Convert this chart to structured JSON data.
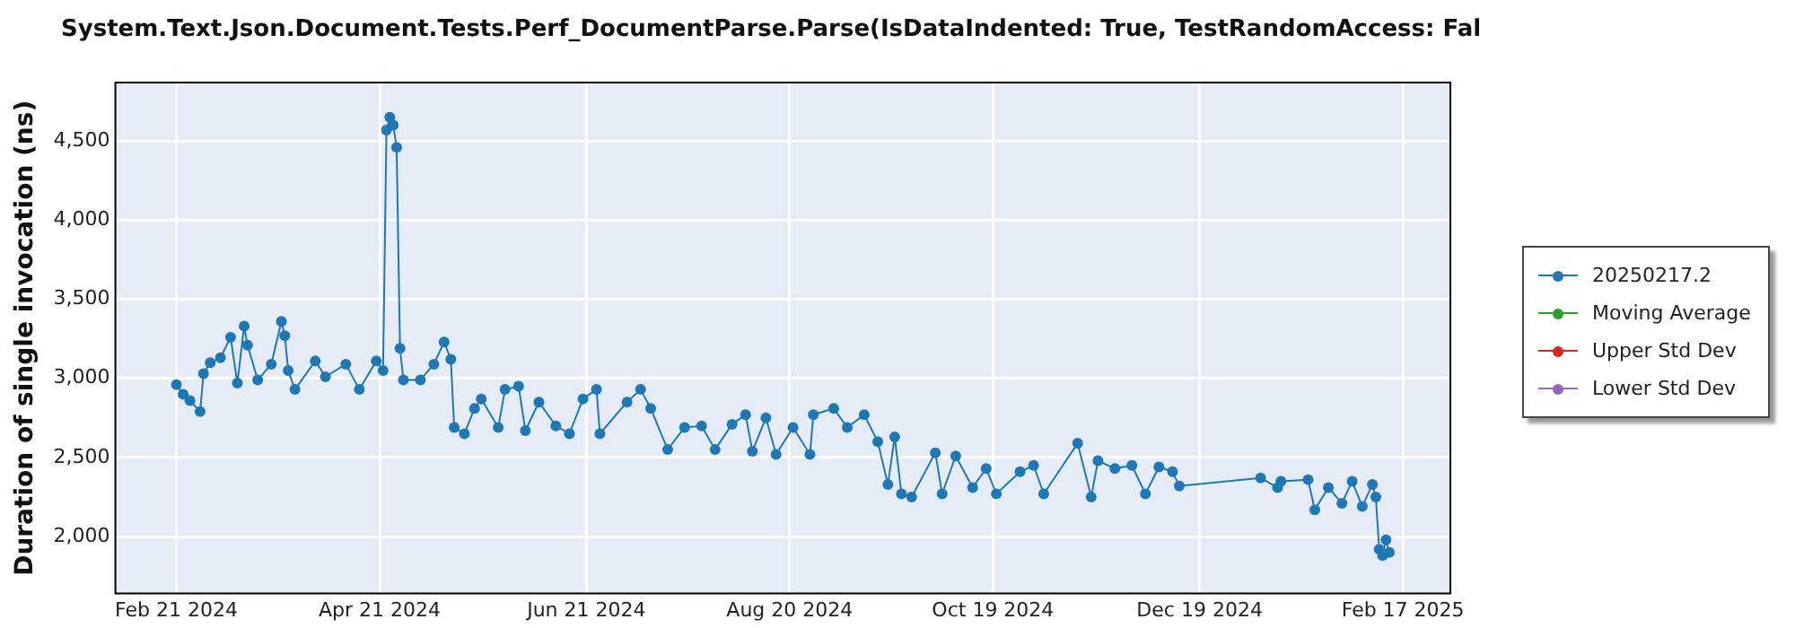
{
  "chart_data": {
    "type": "line",
    "title": "System.Text.Json.Document.Tests.Perf_DocumentParse.Parse(IsDataIndented: True, TestRandomAccess: Fal",
    "ylabel": "Duration of single invocation (ns)",
    "x": [
      "2024-02-21",
      "2024-02-23",
      "2024-02-25",
      "2024-02-28",
      "2024-02-29",
      "2024-03-02",
      "2024-03-05",
      "2024-03-08",
      "2024-03-10",
      "2024-03-12",
      "2024-03-13",
      "2024-03-16",
      "2024-03-20",
      "2024-03-23",
      "2024-03-24",
      "2024-03-25",
      "2024-03-27",
      "2024-04-02",
      "2024-04-05",
      "2024-04-11",
      "2024-04-15",
      "2024-04-20",
      "2024-04-22",
      "2024-04-23",
      "2024-04-24",
      "2024-04-25",
      "2024-04-26",
      "2024-04-27",
      "2024-04-28",
      "2024-05-03",
      "2024-05-07",
      "2024-05-10",
      "2024-05-12",
      "2024-05-13",
      "2024-05-16",
      "2024-05-19",
      "2024-05-21",
      "2024-05-26",
      "2024-05-28",
      "2024-06-01",
      "2024-06-03",
      "2024-06-07",
      "2024-06-12",
      "2024-06-16",
      "2024-06-20",
      "2024-06-24",
      "2024-06-25",
      "2024-07-03",
      "2024-07-07",
      "2024-07-10",
      "2024-07-15",
      "2024-07-20",
      "2024-07-25",
      "2024-07-29",
      "2024-08-03",
      "2024-08-07",
      "2024-08-09",
      "2024-08-13",
      "2024-08-16",
      "2024-08-21",
      "2024-08-26",
      "2024-08-27",
      "2024-09-02",
      "2024-09-06",
      "2024-09-11",
      "2024-09-15",
      "2024-09-18",
      "2024-09-20",
      "2024-09-22",
      "2024-09-25",
      "2024-10-02",
      "2024-10-04",
      "2024-10-08",
      "2024-10-13",
      "2024-10-17",
      "2024-10-20",
      "2024-10-27",
      "2024-10-31",
      "2024-11-03",
      "2024-11-13",
      "2024-11-17",
      "2024-11-19",
      "2024-11-24",
      "2024-11-29",
      "2024-12-03",
      "2024-12-07",
      "2024-12-11",
      "2024-12-13",
      "2025-01-06",
      "2025-01-11",
      "2025-01-12",
      "2025-01-20",
      "2025-01-22",
      "2025-01-26",
      "2025-01-30",
      "2025-02-02",
      "2025-02-05",
      "2025-02-08",
      "2025-02-09",
      "2025-02-10",
      "2025-02-11",
      "2025-02-12",
      "2025-02-13"
    ],
    "series": [
      {
        "name": "20250217.2",
        "color": "#1f77b4",
        "values": [
          2960,
          2900,
          2860,
          2790,
          3030,
          3100,
          3130,
          3260,
          2970,
          3330,
          3210,
          2990,
          3090,
          3360,
          3270,
          3050,
          2930,
          3110,
          3010,
          3090,
          2930,
          3110,
          3050,
          4570,
          4650,
          4600,
          4460,
          3190,
          2990,
          2990,
          3090,
          3230,
          3120,
          2690,
          2650,
          2810,
          2870,
          2690,
          2930,
          2950,
          2670,
          2850,
          2700,
          2650,
          2870,
          2930,
          2650,
          2850,
          2930,
          2810,
          2550,
          2690,
          2700,
          2550,
          2710,
          2770,
          2540,
          2750,
          2520,
          2690,
          2520,
          2770,
          2810,
          2690,
          2770,
          2600,
          2330,
          2630,
          2270,
          2250,
          2530,
          2270,
          2510,
          2310,
          2430,
          2270,
          2410,
          2450,
          2270,
          2590,
          2250,
          2480,
          2430,
          2450,
          2270,
          2440,
          2410,
          2320,
          2370,
          2310,
          2350,
          2360,
          2170,
          2310,
          2210,
          2350,
          2190,
          2330,
          2250,
          1920,
          1880,
          1980,
          1900
        ]
      },
      {
        "name": "Moving Average",
        "color": "#2ca02c",
        "values": [
          null,
          null,
          null,
          null,
          null,
          null,
          null,
          null,
          null,
          null,
          null,
          null,
          null,
          null,
          null,
          null,
          null,
          null,
          null,
          null,
          null,
          null,
          null,
          null,
          null,
          null,
          null,
          null,
          null,
          null,
          null,
          null,
          null,
          null,
          null,
          null,
          null,
          null,
          null,
          null,
          null,
          null,
          null,
          null,
          null,
          null,
          null,
          null,
          null,
          null,
          null,
          null,
          null,
          null,
          null,
          null,
          null,
          null,
          null,
          null,
          null,
          null,
          null,
          null,
          null,
          null,
          null,
          null,
          null,
          null,
          null,
          null,
          null,
          null,
          null,
          null,
          null,
          null,
          null,
          null,
          null,
          null,
          null,
          null,
          null,
          null,
          null,
          null,
          null,
          null,
          null,
          null,
          null,
          null,
          null,
          null,
          null,
          null,
          null,
          null,
          null,
          null,
          null
        ]
      },
      {
        "name": "Upper Std Dev",
        "color": "#d62728",
        "values": [
          null,
          null,
          null,
          null,
          null,
          null,
          null,
          null,
          null,
          null,
          null,
          null,
          null,
          null,
          null,
          null,
          null,
          null,
          null,
          null,
          null,
          null,
          null,
          null,
          null,
          null,
          null,
          null,
          null,
          null,
          null,
          null,
          null,
          null,
          null,
          null,
          null,
          null,
          null,
          null,
          null,
          null,
          null,
          null,
          null,
          null,
          null,
          null,
          null,
          null,
          null,
          null,
          null,
          null,
          null,
          null,
          null,
          null,
          null,
          null,
          null,
          null,
          null,
          null,
          null,
          null,
          null,
          null,
          null,
          null,
          null,
          null,
          null,
          null,
          null,
          null,
          null,
          null,
          null,
          null,
          null,
          null,
          null,
          null,
          null,
          null,
          null,
          null,
          null,
          null,
          null,
          null,
          null,
          null,
          null,
          null,
          null,
          null,
          null,
          null,
          null,
          null,
          null
        ]
      },
      {
        "name": "Lower Std Dev",
        "color": "#9467bd",
        "values": [
          null,
          null,
          null,
          null,
          null,
          null,
          null,
          null,
          null,
          null,
          null,
          null,
          null,
          null,
          null,
          null,
          null,
          null,
          null,
          null,
          null,
          null,
          null,
          null,
          null,
          null,
          null,
          null,
          null,
          null,
          null,
          null,
          null,
          null,
          null,
          null,
          null,
          null,
          null,
          null,
          null,
          null,
          null,
          null,
          null,
          null,
          null,
          null,
          null,
          null,
          null,
          null,
          null,
          null,
          null,
          null,
          null,
          null,
          null,
          null,
          null,
          null,
          null,
          null,
          null,
          null,
          null,
          null,
          null,
          null,
          null,
          null,
          null,
          null,
          null,
          null,
          null,
          null,
          null,
          null,
          null,
          null,
          null,
          null,
          null,
          null,
          null,
          null,
          null,
          null,
          null,
          null,
          null,
          null,
          null,
          null,
          null,
          null,
          null,
          null,
          null,
          null,
          null
        ]
      }
    ],
    "xlim": [
      "2024-02-03",
      "2025-03-03"
    ],
    "xticks": [
      {
        "value": "2024-02-21",
        "label": "Feb 21 2024"
      },
      {
        "value": "2024-04-21",
        "label": "Apr 21 2024"
      },
      {
        "value": "2024-06-21",
        "label": "Jun 21 2024"
      },
      {
        "value": "2024-08-20",
        "label": "Aug 20 2024"
      },
      {
        "value": "2024-10-19",
        "label": "Oct 19 2024"
      },
      {
        "value": "2024-12-19",
        "label": "Dec 19 2024"
      },
      {
        "value": "2025-02-17",
        "label": "Feb 17 2025"
      }
    ],
    "ylim": [
      1640,
      4870
    ],
    "yticks": [
      {
        "value": 2000,
        "label": "2,000"
      },
      {
        "value": 2500,
        "label": "2,500"
      },
      {
        "value": 3000,
        "label": "3,000"
      },
      {
        "value": 3500,
        "label": "3,500"
      },
      {
        "value": 4000,
        "label": "4,000"
      },
      {
        "value": 4500,
        "label": "4,500"
      }
    ],
    "grid": true,
    "legend": "right",
    "marker": "circle",
    "line_style": "solid"
  }
}
